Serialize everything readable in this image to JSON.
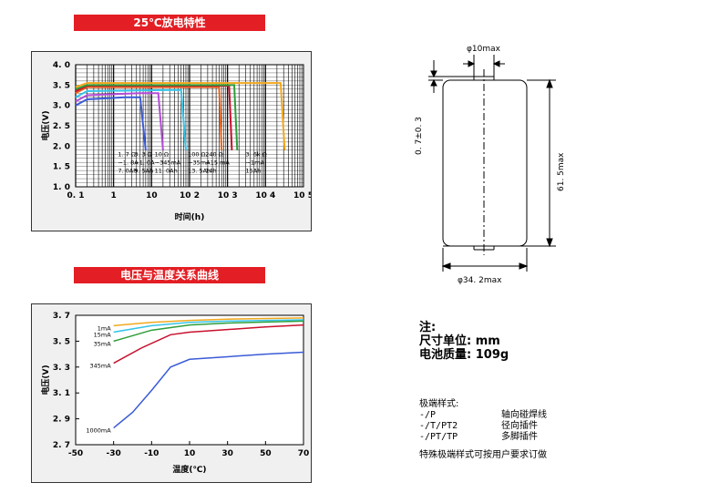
{
  "charts": {
    "discharge_title": "25℃放电特性",
    "temperature_title": "电压与温度关系曲线"
  },
  "chart_data": [
    {
      "type": "line",
      "title": "25℃放电特性",
      "xlabel": "时间(h)",
      "ylabel": "电压(V)",
      "xscale": "log",
      "xlim": [
        0.1,
        100000
      ],
      "ylim": [
        1.0,
        4.0
      ],
      "x_ticks": [
        "0. 1",
        "1",
        "10",
        "10 2",
        "10 3",
        "10 4",
        "10 5"
      ],
      "y_ticks": [
        "1. 0",
        "1. 5",
        "2. 0",
        "2. 5",
        "3. 0",
        "3. 5",
        "4. 0"
      ],
      "grid": true,
      "series": [
        {
          "color": "#3b5bd6",
          "values": [
            [
              0.1,
              3.0
            ],
            [
              0.2,
              3.15
            ],
            [
              2,
              3.2
            ],
            [
              5,
              3.2
            ],
            [
              7.0,
              1.9
            ]
          ]
        },
        {
          "color": "#b34bd9",
          "values": [
            [
              0.1,
              3.1
            ],
            [
              0.2,
              3.25
            ],
            [
              5,
              3.3
            ],
            [
              15,
              3.3
            ],
            [
              20,
              1.9
            ]
          ]
        },
        {
          "color": "#35c4e8",
          "values": [
            [
              0.1,
              3.2
            ],
            [
              0.2,
              3.35
            ],
            [
              30,
              3.38
            ],
            [
              60,
              3.38
            ],
            [
              80,
              1.9
            ]
          ]
        },
        {
          "color": "#e8631a",
          "values": [
            [
              0.1,
              3.3
            ],
            [
              0.2,
              3.45
            ],
            [
              300,
              3.45
            ],
            [
              600,
              3.45
            ],
            [
              700,
              1.9
            ]
          ]
        },
        {
          "color": "#c8102e",
          "values": [
            [
              0.1,
              3.35
            ],
            [
              0.2,
              3.48
            ],
            [
              600,
              3.48
            ],
            [
              1100,
              3.48
            ],
            [
              1300,
              1.9
            ]
          ]
        },
        {
          "color": "#2e9e3a",
          "values": [
            [
              0.1,
              3.4
            ],
            [
              0.2,
              3.5
            ],
            [
              1000,
              3.5
            ],
            [
              1500,
              3.5
            ],
            [
              1800,
              1.9
            ]
          ]
        },
        {
          "color": "#f2a81d",
          "values": [
            [
              0.1,
              3.45
            ],
            [
              0.2,
              3.55
            ],
            [
              15000,
              3.55
            ],
            [
              25000,
              3.55
            ],
            [
              32000,
              1.9
            ]
          ]
        }
      ],
      "labels": [
        [
          "1. 7 Ω",
          "~1. 8A",
          "7. 0Ah"
        ],
        [
          "3. 3 Ω",
          "~1. 0A",
          "9. 5Ah"
        ],
        [
          "10 Ω",
          "~345mA",
          "11. 0Ah"
        ],
        [
          "100 Ω",
          "~35mA",
          "13. 5Ah"
        ],
        [
          "240 Ω",
          "~15 mA",
          "14h"
        ],
        [
          "3. 6k Ω",
          "~1mA",
          "15Ah"
        ]
      ]
    },
    {
      "type": "line",
      "title": "电压与温度关系曲线",
      "xlabel": "温度(℃)",
      "ylabel": "电压(V)",
      "xlim": [
        -50,
        70
      ],
      "ylim": [
        2.7,
        3.7
      ],
      "x_ticks": [
        -50,
        -30,
        -10,
        10,
        30,
        50,
        70
      ],
      "y_ticks": [
        "2. 7",
        "2. 9",
        "3. 1",
        "3. 3",
        "3. 5",
        "3. 7"
      ],
      "grid": false,
      "series": [
        {
          "name": "1mA",
          "color": "#f2a81d",
          "values": [
            [
              -30,
              3.62
            ],
            [
              -10,
              3.645
            ],
            [
              10,
              3.66
            ],
            [
              30,
              3.67
            ],
            [
              50,
              3.675
            ],
            [
              70,
              3.68
            ]
          ]
        },
        {
          "name": "15mA",
          "color": "#35c4e8",
          "values": [
            [
              -30,
              3.57
            ],
            [
              -10,
              3.62
            ],
            [
              10,
              3.645
            ],
            [
              30,
              3.655
            ],
            [
              50,
              3.66
            ],
            [
              70,
              3.665
            ]
          ]
        },
        {
          "name": "35mA",
          "color": "#2e9e3a",
          "values": [
            [
              -30,
              3.5
            ],
            [
              -10,
              3.585
            ],
            [
              10,
              3.625
            ],
            [
              30,
              3.64
            ],
            [
              50,
              3.648
            ],
            [
              70,
              3.655
            ]
          ]
        },
        {
          "name": "345mA",
          "color": "#c8102e",
          "values": [
            [
              -30,
              3.33
            ],
            [
              -15,
              3.45
            ],
            [
              0,
              3.55
            ],
            [
              10,
              3.57
            ],
            [
              30,
              3.59
            ],
            [
              50,
              3.61
            ],
            [
              70,
              3.625
            ]
          ]
        },
        {
          "name": "1000mA",
          "color": "#3b5bd6",
          "values": [
            [
              -30,
              2.83
            ],
            [
              -20,
              2.95
            ],
            [
              -10,
              3.12
            ],
            [
              0,
              3.3
            ],
            [
              10,
              3.36
            ],
            [
              30,
              3.38
            ],
            [
              50,
              3.4
            ],
            [
              70,
              3.415
            ]
          ]
        }
      ]
    }
  ],
  "drawing": {
    "diameter_top": "φ10max",
    "tab_height": "0. 7±0. 3",
    "height": "61. 5max",
    "diameter_body": "φ34. 2max"
  },
  "notes": {
    "title": "注:",
    "unit": "尺寸单位: mm",
    "mass": "电池质量: 109g",
    "terminal_title": "极端样式:",
    "rows": [
      {
        "code": "-/P",
        "desc": "轴向碰焊线"
      },
      {
        "code": "-/T/PT2",
        "desc": "径向插件"
      },
      {
        "code": "-/PT/TP",
        "desc": "多脚插件"
      }
    ],
    "special": "特殊极端样式可按用户要求订做"
  }
}
